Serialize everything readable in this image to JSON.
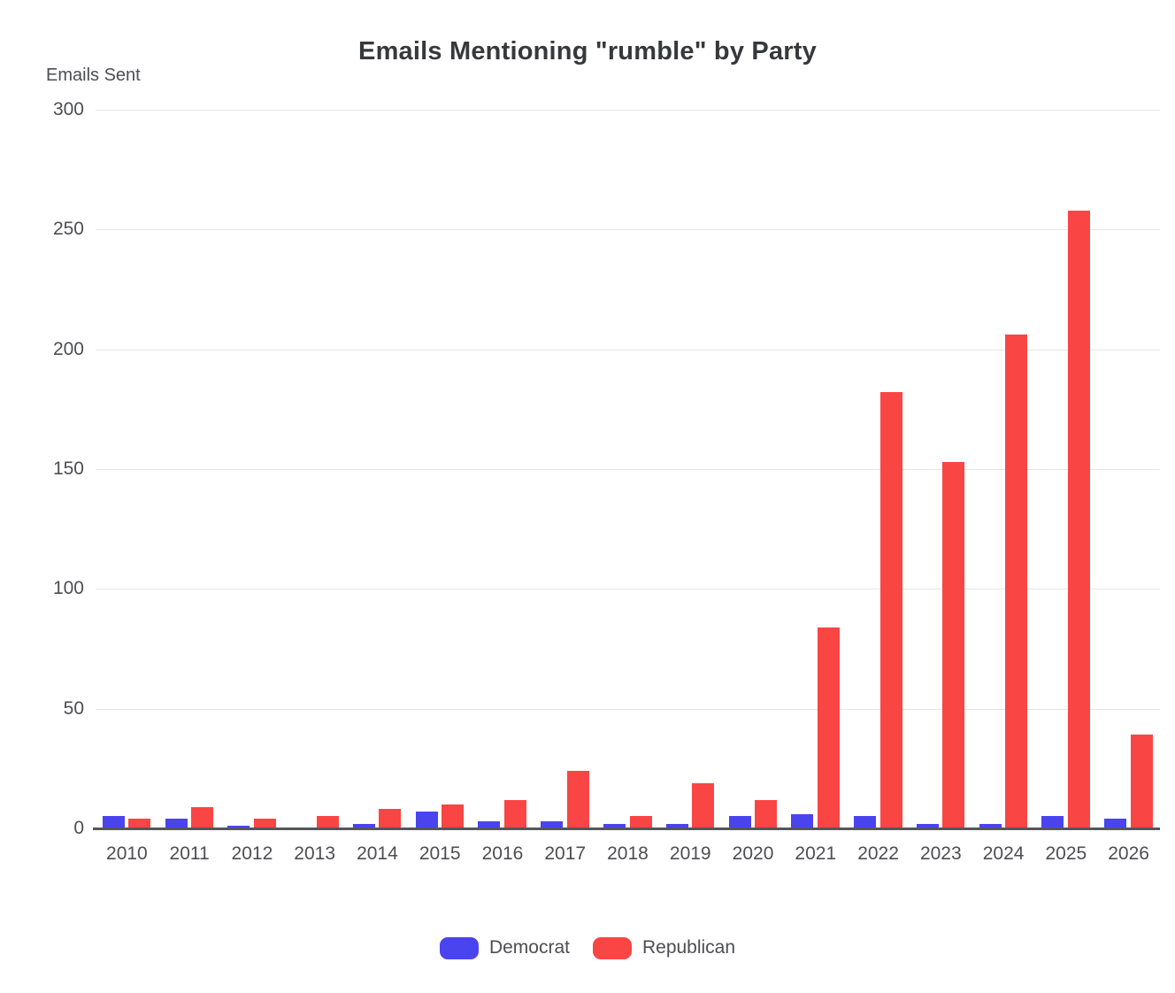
{
  "title": "Emails Mentioning \"rumble\" by Party",
  "y_axis": {
    "label": "Emails Sent"
  },
  "legend": {
    "items": [
      {
        "name": "Democrat",
        "color": "#4a44ee"
      },
      {
        "name": "Republican",
        "color": "#fa4545"
      }
    ],
    "position": "bottom"
  },
  "colors": {
    "democrat": "#4a44ee",
    "republican": "#fa4545",
    "gridline": "#e4e5e9",
    "axis_line": "#55565a",
    "text": "#4d4e52",
    "title_text": "#37383b"
  },
  "chart_data": {
    "type": "bar",
    "title": "Emails Mentioning \"rumble\" by Party",
    "xlabel": "",
    "ylabel": "Emails Sent",
    "ylim": [
      0,
      300
    ],
    "y_ticks": [
      0,
      50,
      100,
      150,
      200,
      250,
      300
    ],
    "grid": true,
    "legend_position": "bottom",
    "categories": [
      "2010",
      "2011",
      "2012",
      "2013",
      "2014",
      "2015",
      "2016",
      "2017",
      "2018",
      "2019",
      "2020",
      "2021",
      "2022",
      "2023",
      "2024",
      "2025",
      "2026"
    ],
    "series": [
      {
        "name": "Democrat",
        "color": "#4a44ee",
        "values": [
          5,
          4,
          1,
          0,
          2,
          7,
          3,
          3,
          2,
          2,
          5,
          6,
          5,
          2,
          2,
          5,
          4
        ]
      },
      {
        "name": "Republican",
        "color": "#fa4545",
        "values": [
          4,
          9,
          4,
          5,
          8,
          10,
          12,
          24,
          5,
          19,
          12,
          84,
          182,
          153,
          206,
          258,
          39
        ]
      }
    ]
  }
}
